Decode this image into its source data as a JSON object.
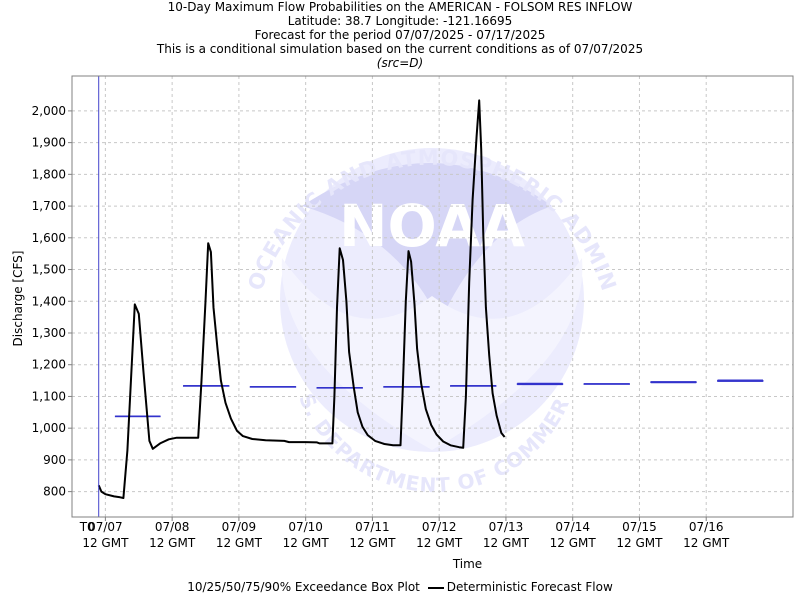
{
  "titles": {
    "line1": "10-Day Maximum Flow Probabilities on the AMERICAN - FOLSOM RES INFLOW",
    "line2": "Latitude: 38.7 Longitude: -121.16695",
    "line3": "Forecast for the period 07/07/2025 - 07/17/2025",
    "line4": "This is a conditional simulation based on the current conditions as of 07/07/2025",
    "line5": "(src=D)"
  },
  "watermark": {
    "logo_text": "NOAA",
    "ring_top": "NATIONAL OCEANIC AND ATMOSPHERIC ADMINISTRATION",
    "ring_bottom": "U.S. DEPARTMENT OF COMMERCE"
  },
  "legend": {
    "box_label": "10/25/50/75/90% Exceedance Box Plot",
    "line_label": "Deterministic Forecast Flow"
  },
  "colors": {
    "forecast": "#000000",
    "box": "#3333cc",
    "t0_line": "#4444cc",
    "grid": "#c8c8c8",
    "watermark": "#e6e6fb"
  },
  "chart_data": {
    "type": "line",
    "xlabel": "Time",
    "ylabel": "Discharge [CFS]",
    "ylim": [
      720,
      2110
    ],
    "xlim": [
      -0.5,
      10.3
    ],
    "x_unit": "days after 07/07 12 GMT",
    "grid": true,
    "legend_position": "bottom",
    "x_ticks": [
      {
        "x": 0,
        "label": [
          "07/07",
          "12 GMT"
        ]
      },
      {
        "x": 1,
        "label": [
          "07/08",
          "12 GMT"
        ]
      },
      {
        "x": 2,
        "label": [
          "07/09",
          "12 GMT"
        ]
      },
      {
        "x": 3,
        "label": [
          "07/10",
          "12 GMT"
        ]
      },
      {
        "x": 4,
        "label": [
          "07/11",
          "12 GMT"
        ]
      },
      {
        "x": 5,
        "label": [
          "07/12",
          "12 GMT"
        ]
      },
      {
        "x": 6,
        "label": [
          "07/13",
          "12 GMT"
        ]
      },
      {
        "x": 7,
        "label": [
          "07/14",
          "12 GMT"
        ]
      },
      {
        "x": 8,
        "label": [
          "07/15",
          "12 GMT"
        ]
      },
      {
        "x": 9,
        "label": [
          "07/16",
          "12 GMT"
        ]
      }
    ],
    "y_ticks": [
      800,
      900,
      1000,
      1100,
      1200,
      1300,
      1400,
      1500,
      1600,
      1700,
      1800,
      1900,
      2000
    ],
    "y_tick_labels": [
      "800",
      "900",
      "1,000",
      "1,100",
      "1,200",
      "1,300",
      "1,400",
      "1,500",
      "1,600",
      "1,700",
      "1,800",
      "1,900",
      "2,000"
    ],
    "t0": {
      "x": -0.1,
      "label": "T0"
    },
    "series": [
      {
        "name": "Deterministic Forecast Flow",
        "points": [
          [
            -0.1,
            820
          ],
          [
            -0.06,
            800
          ],
          [
            0.0,
            792
          ],
          [
            0.13,
            785
          ],
          [
            0.22,
            782
          ],
          [
            0.27,
            780
          ],
          [
            0.33,
            930
          ],
          [
            0.44,
            1390
          ],
          [
            0.5,
            1360
          ],
          [
            0.57,
            1180
          ],
          [
            0.66,
            960
          ],
          [
            0.71,
            935
          ],
          [
            0.82,
            952
          ],
          [
            0.95,
            965
          ],
          [
            1.07,
            970
          ],
          [
            1.2,
            970
          ],
          [
            1.39,
            970
          ],
          [
            1.44,
            1150
          ],
          [
            1.5,
            1400
          ],
          [
            1.54,
            1583
          ],
          [
            1.58,
            1555
          ],
          [
            1.62,
            1380
          ],
          [
            1.68,
            1250
          ],
          [
            1.73,
            1150
          ],
          [
            1.8,
            1080
          ],
          [
            1.88,
            1030
          ],
          [
            1.97,
            992
          ],
          [
            2.06,
            975
          ],
          [
            2.2,
            966
          ],
          [
            2.4,
            962
          ],
          [
            2.68,
            960
          ],
          [
            2.75,
            956
          ],
          [
            3.0,
            956
          ],
          [
            3.17,
            955
          ],
          [
            3.21,
            952
          ],
          [
            3.4,
            952
          ],
          [
            3.43,
            1100
          ],
          [
            3.47,
            1380
          ],
          [
            3.51,
            1567
          ],
          [
            3.56,
            1530
          ],
          [
            3.61,
            1400
          ],
          [
            3.65,
            1240
          ],
          [
            3.72,
            1130
          ],
          [
            3.78,
            1050
          ],
          [
            3.85,
            1005
          ],
          [
            3.93,
            978
          ],
          [
            4.04,
            960
          ],
          [
            4.18,
            950
          ],
          [
            4.31,
            946
          ],
          [
            4.42,
            946
          ],
          [
            4.45,
            1100
          ],
          [
            4.5,
            1400
          ],
          [
            4.54,
            1558
          ],
          [
            4.58,
            1525
          ],
          [
            4.63,
            1390
          ],
          [
            4.67,
            1250
          ],
          [
            4.73,
            1140
          ],
          [
            4.8,
            1060
          ],
          [
            4.88,
            1010
          ],
          [
            4.96,
            980
          ],
          [
            5.06,
            958
          ],
          [
            5.17,
            946
          ],
          [
            5.3,
            940
          ],
          [
            5.36,
            938
          ],
          [
            5.4,
            1100
          ],
          [
            5.45,
            1460
          ],
          [
            5.5,
            1720
          ],
          [
            5.56,
            1920
          ],
          [
            5.6,
            2033
          ],
          [
            5.63,
            1880
          ],
          [
            5.66,
            1620
          ],
          [
            5.7,
            1380
          ],
          [
            5.75,
            1230
          ],
          [
            5.8,
            1110
          ],
          [
            5.86,
            1040
          ],
          [
            5.93,
            985
          ],
          [
            5.98,
            972
          ]
        ]
      }
    ],
    "box_plots": [
      {
        "x_start": 0.15,
        "x_end": 0.82,
        "exceedance_values": [
          1038,
          1038,
          1038,
          1038,
          1038
        ]
      },
      {
        "x_start": 1.17,
        "x_end": 1.85,
        "exceedance_values": [
          1134,
          1134,
          1134,
          1134,
          1134
        ]
      },
      {
        "x_start": 2.17,
        "x_end": 2.85,
        "exceedance_values": [
          1131,
          1131,
          1131,
          1131,
          1131
        ]
      },
      {
        "x_start": 3.17,
        "x_end": 3.85,
        "exceedance_values": [
          1128,
          1128,
          1128,
          1128,
          1128
        ]
      },
      {
        "x_start": 4.17,
        "x_end": 4.85,
        "exceedance_values": [
          1131,
          1131,
          1131,
          1131,
          1131
        ]
      },
      {
        "x_start": 5.17,
        "x_end": 5.85,
        "exceedance_values": [
          1134,
          1134,
          1134,
          1134,
          1134
        ]
      },
      {
        "x_start": 6.17,
        "x_end": 6.85,
        "exceedance_values": [
          1137,
          1138,
          1139,
          1140,
          1142
        ]
      },
      {
        "x_start": 7.17,
        "x_end": 7.85,
        "exceedance_values": [
          1140,
          1140,
          1140,
          1140,
          1140
        ]
      },
      {
        "x_start": 8.17,
        "x_end": 8.85,
        "exceedance_values": [
          1143,
          1144,
          1145,
          1146,
          1147
        ]
      },
      {
        "x_start": 9.17,
        "x_end": 9.85,
        "exceedance_values": [
          1147,
          1148,
          1149,
          1150,
          1152
        ]
      }
    ]
  }
}
